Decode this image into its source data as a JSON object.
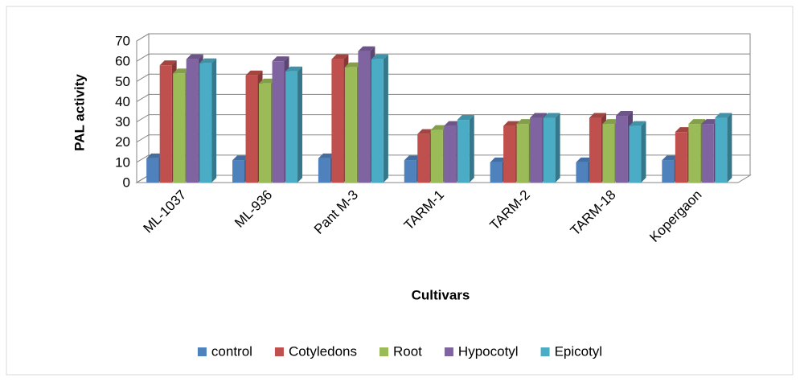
{
  "chart_data": {
    "type": "bar3d",
    "x_label": "Cultivars",
    "y_label": "PAL activity",
    "categories": [
      "ML-1037",
      "ML-936",
      "Pant M-3",
      "TARM-1",
      "TARM-2",
      "TARM-18",
      "Kopergaon"
    ],
    "series": [
      {
        "name": "control",
        "color": "#4f81bd",
        "values": [
          12,
          11,
          12,
          11,
          10,
          10,
          11
        ]
      },
      {
        "name": "Cotyledons",
        "color": "#c0504d",
        "values": [
          58,
          53,
          61,
          24,
          28,
          32,
          25
        ]
      },
      {
        "name": "Root",
        "color": "#9bbb59",
        "values": [
          54,
          49,
          57,
          26,
          29,
          29,
          29
        ]
      },
      {
        "name": "Hypocotyl",
        "color": "#8064a2",
        "values": [
          61,
          60,
          65,
          28,
          32,
          33,
          29
        ]
      },
      {
        "name": "Epicotyl",
        "color": "#4bacc6",
        "values": [
          59,
          55,
          61,
          31,
          32,
          28,
          32
        ]
      }
    ],
    "ylim": [
      0,
      70
    ],
    "yticks": [
      0,
      10,
      20,
      30,
      40,
      50,
      60,
      70
    ],
    "grid": true,
    "legend": "bottom"
  }
}
